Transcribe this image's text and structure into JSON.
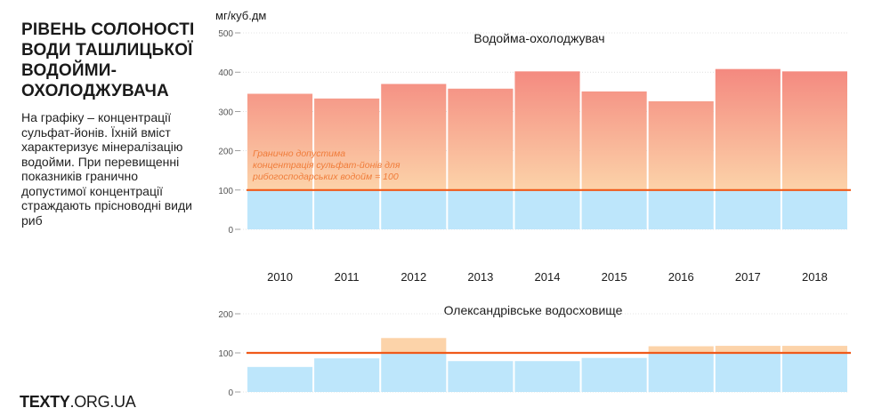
{
  "title": "РІВЕНЬ СОЛОНОСТІ ВОДИ ТАШЛИЦЬКОЇ ВОДОЙМИ-ОХОЛОДЖУВАЧА",
  "description": "На графіку – концентрації сульфат-йонів. Їхній вміст характеризує мінералізацію водойми. При перевищенні показників гранично допустимої концентрації страждають прісноводні види риб",
  "logo": {
    "bold": "TEXTY",
    "rest": ".ORG.UA"
  },
  "colors": {
    "below_limit": "#bde6fb",
    "gradient_top": "#f48a80",
    "gradient_bottom": "#fcd3a9",
    "limit_line": "#f05a1a",
    "limit_text": "#f07c3a",
    "axis_text": "#555555",
    "grid": "#cccccc"
  },
  "chart_data": [
    {
      "type": "bar",
      "title": "Водойма-охолоджувач",
      "ylabel": "мг/куб.дм",
      "xlabel": "",
      "categories": [
        "2010",
        "2011",
        "2012",
        "2013",
        "2014",
        "2015",
        "2016",
        "2017",
        "2018"
      ],
      "values": [
        345,
        333,
        370,
        358,
        402,
        351,
        326,
        408,
        402
      ],
      "ylim": [
        0,
        500
      ],
      "yticks": [
        0,
        100,
        200,
        300,
        400,
        500
      ],
      "threshold": 100,
      "annotation": [
        "Гранично допустима",
        "концентрація сульфат-йонів для",
        "рибогосподарських водойм = 100"
      ]
    },
    {
      "type": "bar",
      "title": "Олександрівське водосховище",
      "ylabel": "",
      "xlabel": "",
      "categories": [
        "2010",
        "2011",
        "2012",
        "2013",
        "2014",
        "2015",
        "2016",
        "2017",
        "2018"
      ],
      "values": [
        64,
        86,
        138,
        79,
        79,
        87,
        117,
        118,
        118
      ],
      "ylim": [
        0,
        200
      ],
      "yticks": [
        0,
        100,
        200
      ],
      "threshold": 100
    }
  ]
}
